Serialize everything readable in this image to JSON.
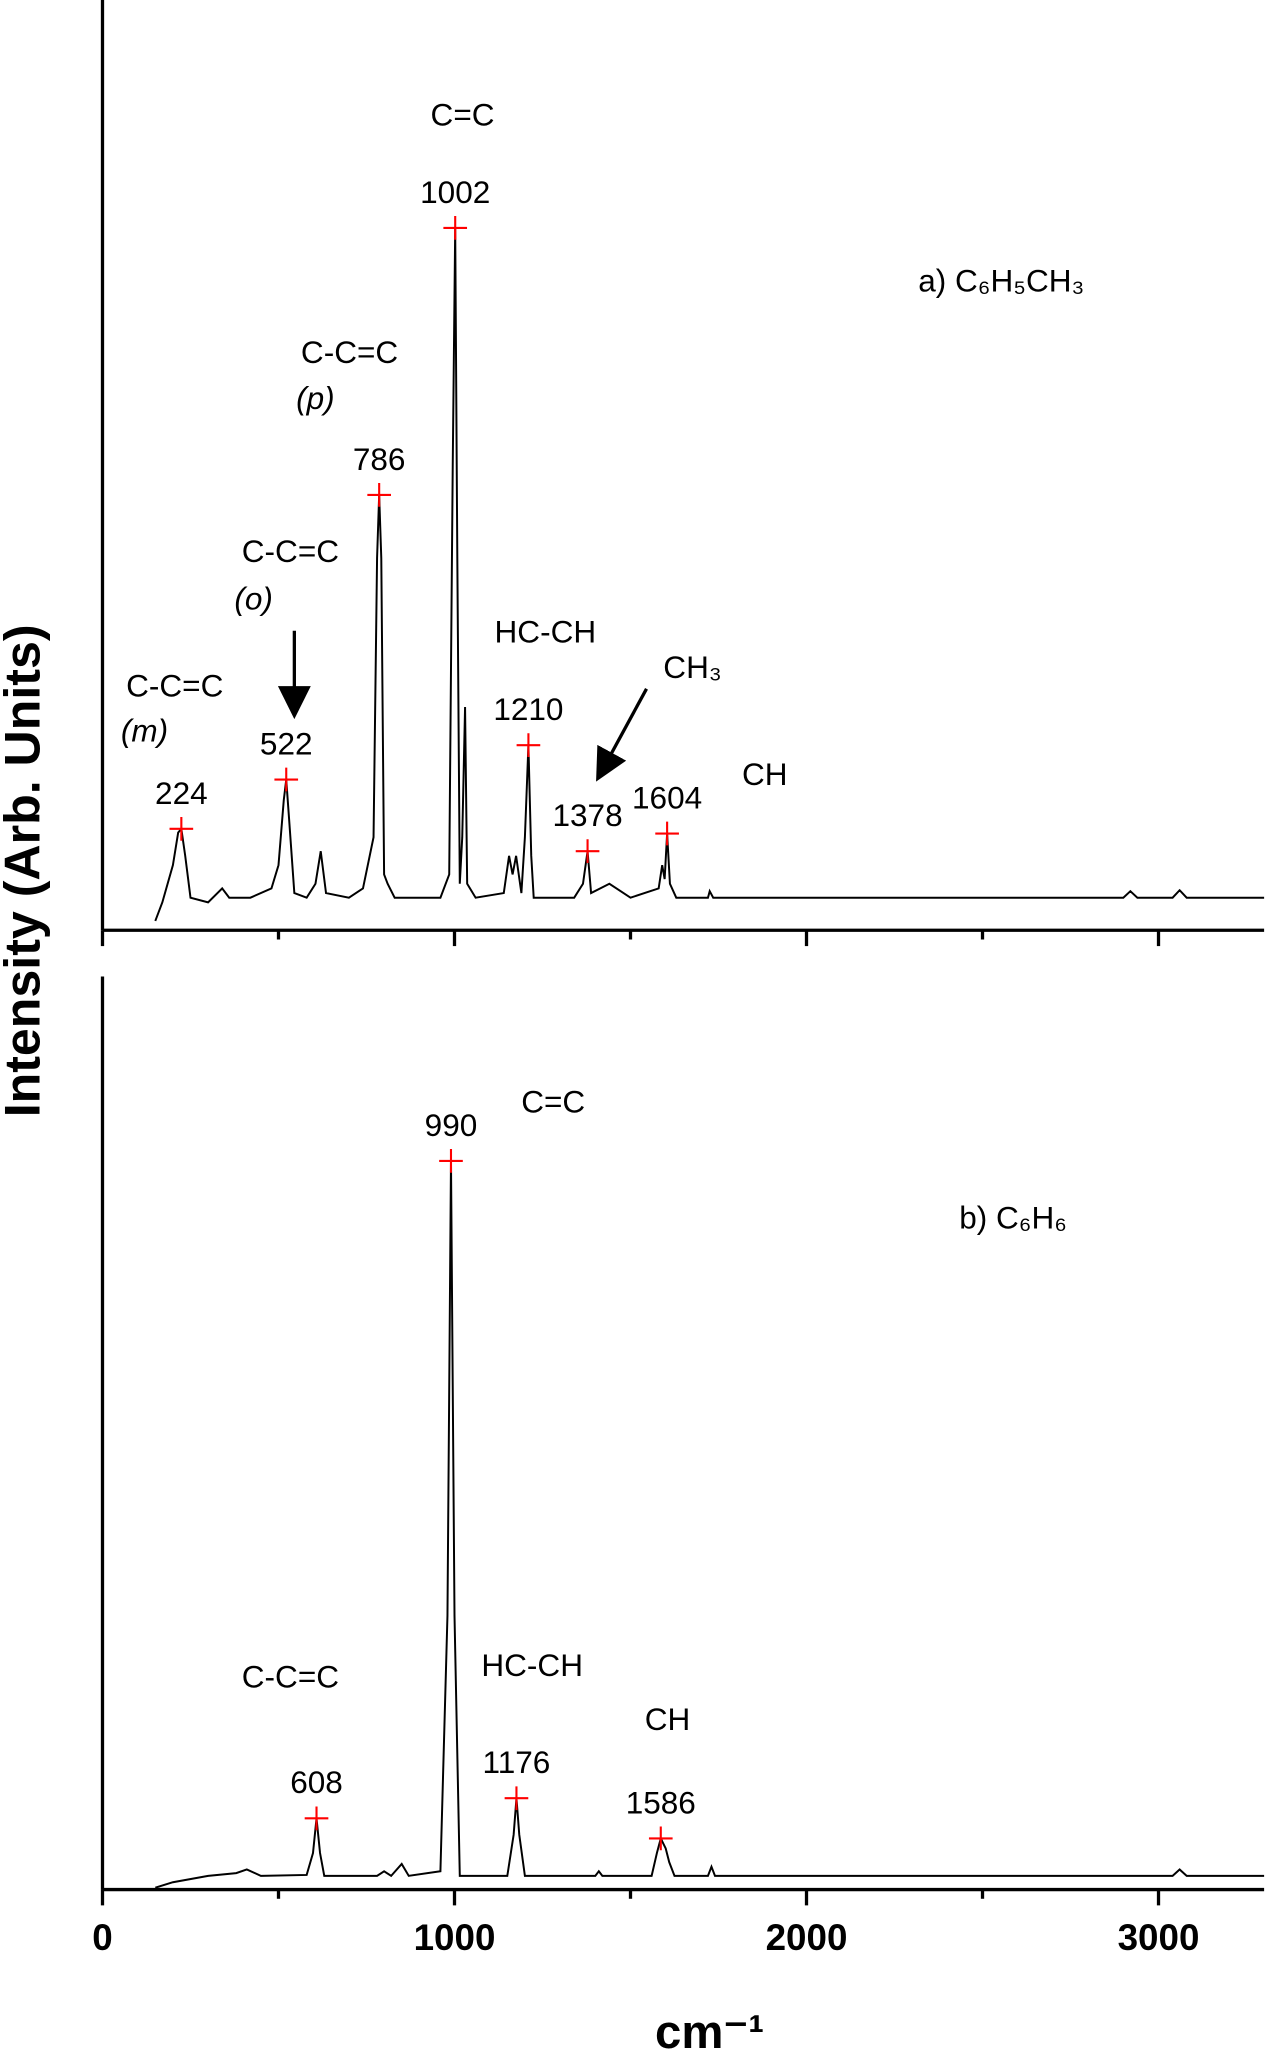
{
  "chart_data": [
    {
      "type": "line",
      "x": [
        150,
        170,
        200,
        215,
        224,
        235,
        250,
        300,
        340,
        360,
        420,
        480,
        500,
        515,
        522,
        530,
        545,
        580,
        605,
        620,
        635,
        700,
        740,
        770,
        780,
        786,
        792,
        800,
        810,
        830,
        900,
        960,
        985,
        995,
        1002,
        1008,
        1015,
        1022,
        1030,
        1036,
        1060,
        1140,
        1155,
        1165,
        1175,
        1190,
        1200,
        1210,
        1218,
        1225,
        1340,
        1365,
        1378,
        1388,
        1440,
        1500,
        1580,
        1590,
        1597,
        1604,
        1612,
        1630,
        1720,
        1725,
        1735,
        2900,
        2920,
        2940,
        3040,
        3060,
        3080,
        3300
      ],
      "values": [
        1,
        3,
        7,
        10.5,
        10.9,
        8,
        3.5,
        3,
        4.5,
        3.5,
        3.5,
        4.5,
        7,
        14,
        16.2,
        12,
        4,
        3.5,
        5,
        8.5,
        4,
        3.5,
        4.5,
        10,
        40,
        46.8,
        40,
        6,
        5,
        3.5,
        3.5,
        3.5,
        6,
        50,
        75.5,
        40,
        5,
        10,
        24,
        5,
        3.5,
        4,
        8,
        6,
        8,
        4,
        10,
        19.9,
        8,
        3.5,
        3.5,
        5,
        8.5,
        4,
        5,
        3.5,
        4.5,
        7,
        5.5,
        10.4,
        5,
        3.5,
        3.5,
        4.2,
        3.5,
        3.5,
        4.2,
        3.5,
        3.5,
        4.3,
        3.5,
        3.5
      ],
      "color": "#000000",
      "peaks": {
        "x": [
          224,
          522,
          786,
          1002,
          1210,
          1378,
          1604
        ],
        "values": [
          10.9,
          16.2,
          46.8,
          75.5,
          19.9,
          8.5,
          10.4
        ],
        "color": "#ff0000"
      },
      "annotations": [
        "C=C",
        "C-C=C",
        "(p)",
        "C-C=C",
        "(o)",
        "C-C=C",
        "(m)",
        "HC-CH",
        "CH₃",
        "CH",
        "a) C₆H₅CH₃"
      ],
      "xlim": [
        0,
        3300
      ],
      "ylim": [
        0,
        100
      ],
      "xticks": [
        0,
        1000,
        2000,
        3000
      ],
      "minor_xticks": [
        500,
        1500,
        2500
      ]
    },
    {
      "type": "line",
      "x": [
        150,
        200,
        300,
        380,
        410,
        450,
        580,
        598,
        608,
        618,
        630,
        780,
        800,
        820,
        850,
        870,
        960,
        980,
        990,
        1000,
        1015,
        1150,
        1168,
        1176,
        1184,
        1200,
        1400,
        1410,
        1420,
        1560,
        1575,
        1586,
        1600,
        1610,
        1625,
        1720,
        1730,
        1740,
        3040,
        3060,
        3080,
        3300
      ],
      "values": [
        0.2,
        0.8,
        1.5,
        1.8,
        2.2,
        1.5,
        1.6,
        4,
        7.8,
        4,
        1.5,
        1.5,
        2,
        1.5,
        2.8,
        1.5,
        2,
        30,
        79.8,
        30,
        1.5,
        1.5,
        6,
        10,
        6,
        1.5,
        1.5,
        2,
        1.5,
        1.5,
        4,
        5.6,
        4.5,
        3,
        1.5,
        1.5,
        2.5,
        1.5,
        1.5,
        2.2,
        1.5,
        1.5
      ],
      "color": "#000000",
      "peaks": {
        "x": [
          608,
          990,
          1176,
          1586
        ],
        "values": [
          7.8,
          79.8,
          10,
          5.6
        ],
        "color": "#ff0000"
      },
      "annotations": [
        "C=C",
        "b) C₆H₆",
        "C-C=C",
        "HC-CH",
        "CH"
      ],
      "xlim": [
        0,
        3300
      ],
      "ylim": [
        0,
        100
      ],
      "xticks": [
        0,
        1000,
        2000,
        3000
      ],
      "minor_xticks": [
        500,
        1500,
        2500
      ]
    }
  ],
  "ylabel": "Intensity (Arb. Units)",
  "xlabel": "cm⁻¹"
}
